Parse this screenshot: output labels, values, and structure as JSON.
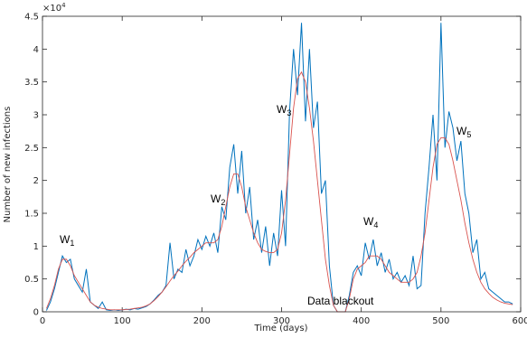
{
  "chart_data": {
    "type": "line",
    "xlabel": "Time (days)",
    "ylabel": "Number of new infections",
    "y_exponent": {
      "base": "×10",
      "power": "4"
    },
    "x": [
      5,
      10,
      15,
      20,
      25,
      30,
      35,
      40,
      45,
      50,
      55,
      60,
      65,
      70,
      75,
      80,
      85,
      90,
      95,
      100,
      105,
      110,
      115,
      120,
      125,
      130,
      135,
      140,
      145,
      150,
      155,
      160,
      165,
      170,
      175,
      180,
      185,
      190,
      195,
      200,
      205,
      210,
      215,
      220,
      225,
      230,
      235,
      240,
      245,
      250,
      255,
      260,
      265,
      270,
      275,
      280,
      285,
      290,
      295,
      300,
      305,
      310,
      315,
      320,
      325,
      330,
      335,
      340,
      345,
      350,
      355,
      360,
      365,
      370,
      375,
      380,
      385,
      390,
      395,
      400,
      405,
      410,
      415,
      420,
      425,
      430,
      435,
      440,
      445,
      450,
      455,
      460,
      465,
      470,
      475,
      480,
      485,
      490,
      495,
      500,
      505,
      510,
      515,
      520,
      525,
      530,
      535,
      540,
      545,
      550,
      555,
      560,
      565,
      570,
      575,
      580,
      585,
      590
    ],
    "series": [
      {
        "color": "#0072bd",
        "values": [
          200,
          1500,
          3500,
          6000,
          8500,
          7500,
          8000,
          5000,
          4000,
          3000,
          6500,
          1500,
          1000,
          500,
          1500,
          300,
          200,
          300,
          200,
          300,
          400,
          300,
          500,
          400,
          600,
          800,
          1200,
          1800,
          2500,
          3000,
          4000,
          10500,
          5000,
          6500,
          6000,
          9500,
          7000,
          8500,
          11000,
          9500,
          11500,
          10000,
          12000,
          9000,
          16000,
          14000,
          22000,
          25500,
          18000,
          24500,
          15000,
          19000,
          11000,
          14000,
          9000,
          13000,
          7000,
          12000,
          8500,
          18500,
          10000,
          30500,
          40000,
          33000,
          44000,
          29000,
          40000,
          28000,
          32000,
          18000,
          20000,
          7000,
          1000,
          0,
          0,
          0,
          2500,
          6000,
          7000,
          5500,
          10500,
          8000,
          11000,
          7000,
          9000,
          6000,
          8000,
          5000,
          6000,
          4500,
          5500,
          4000,
          8500,
          3500,
          4000,
          15000,
          22000,
          30000,
          20000,
          44000,
          25000,
          30500,
          28000,
          23000,
          26000,
          18000,
          15000,
          9000,
          11000,
          5000,
          6000,
          3500,
          3000,
          2500,
          2000,
          1500,
          1500,
          1200
        ]
      },
      {
        "color": "#d9534f",
        "values": [
          500,
          2000,
          4000,
          6500,
          8000,
          8000,
          7000,
          5500,
          4500,
          3500,
          2500,
          1500,
          1000,
          700,
          500,
          400,
          300,
          300,
          300,
          300,
          350,
          400,
          500,
          600,
          700,
          900,
          1200,
          1700,
          2300,
          3000,
          3800,
          4700,
          5500,
          6200,
          7000,
          7700,
          8300,
          9000,
          9500,
          10000,
          10500,
          10500,
          10500,
          11000,
          13000,
          16000,
          19000,
          21000,
          21000,
          19000,
          16000,
          14000,
          12000,
          10500,
          9500,
          9200,
          9000,
          9000,
          9500,
          12000,
          17000,
          24000,
          31000,
          35500,
          36500,
          35000,
          31000,
          26000,
          20000,
          14000,
          8000,
          4000,
          1000,
          0,
          0,
          0,
          2000,
          5000,
          6500,
          7000,
          7500,
          8500,
          8500,
          8500,
          8000,
          7000,
          6000,
          5500,
          5000,
          4500,
          4500,
          4500,
          5000,
          6000,
          8500,
          12000,
          17000,
          22000,
          25500,
          26500,
          26500,
          25500,
          23000,
          20000,
          17000,
          13500,
          10500,
          8000,
          6000,
          4500,
          3500,
          2800,
          2200,
          1800,
          1500,
          1300,
          1200,
          1100
        ]
      }
    ],
    "xlim": [
      0,
      600
    ],
    "xticks": [
      0,
      100,
      200,
      300,
      400,
      500,
      600
    ],
    "ylim": [
      0,
      45000
    ],
    "yticks": [
      {
        "value": 0,
        "label": "0"
      },
      {
        "value": 5000,
        "label": "0.5"
      },
      {
        "value": 10000,
        "label": "1"
      },
      {
        "value": 15000,
        "label": "1.5"
      },
      {
        "value": 20000,
        "label": "2"
      },
      {
        "value": 25000,
        "label": "2.5"
      },
      {
        "value": 30000,
        "label": "3"
      },
      {
        "value": 35000,
        "label": "3.5"
      },
      {
        "value": 40000,
        "label": "4"
      },
      {
        "value": 45000,
        "label": "4.5"
      }
    ],
    "annotations": [
      {
        "text": "W",
        "sub": "1"
      },
      {
        "text": "W",
        "sub": "2"
      },
      {
        "text": "W",
        "sub": "3"
      },
      {
        "text": "W",
        "sub": "4"
      },
      {
        "text": "W",
        "sub": "5"
      },
      {
        "text": "Data blackout"
      }
    ]
  }
}
